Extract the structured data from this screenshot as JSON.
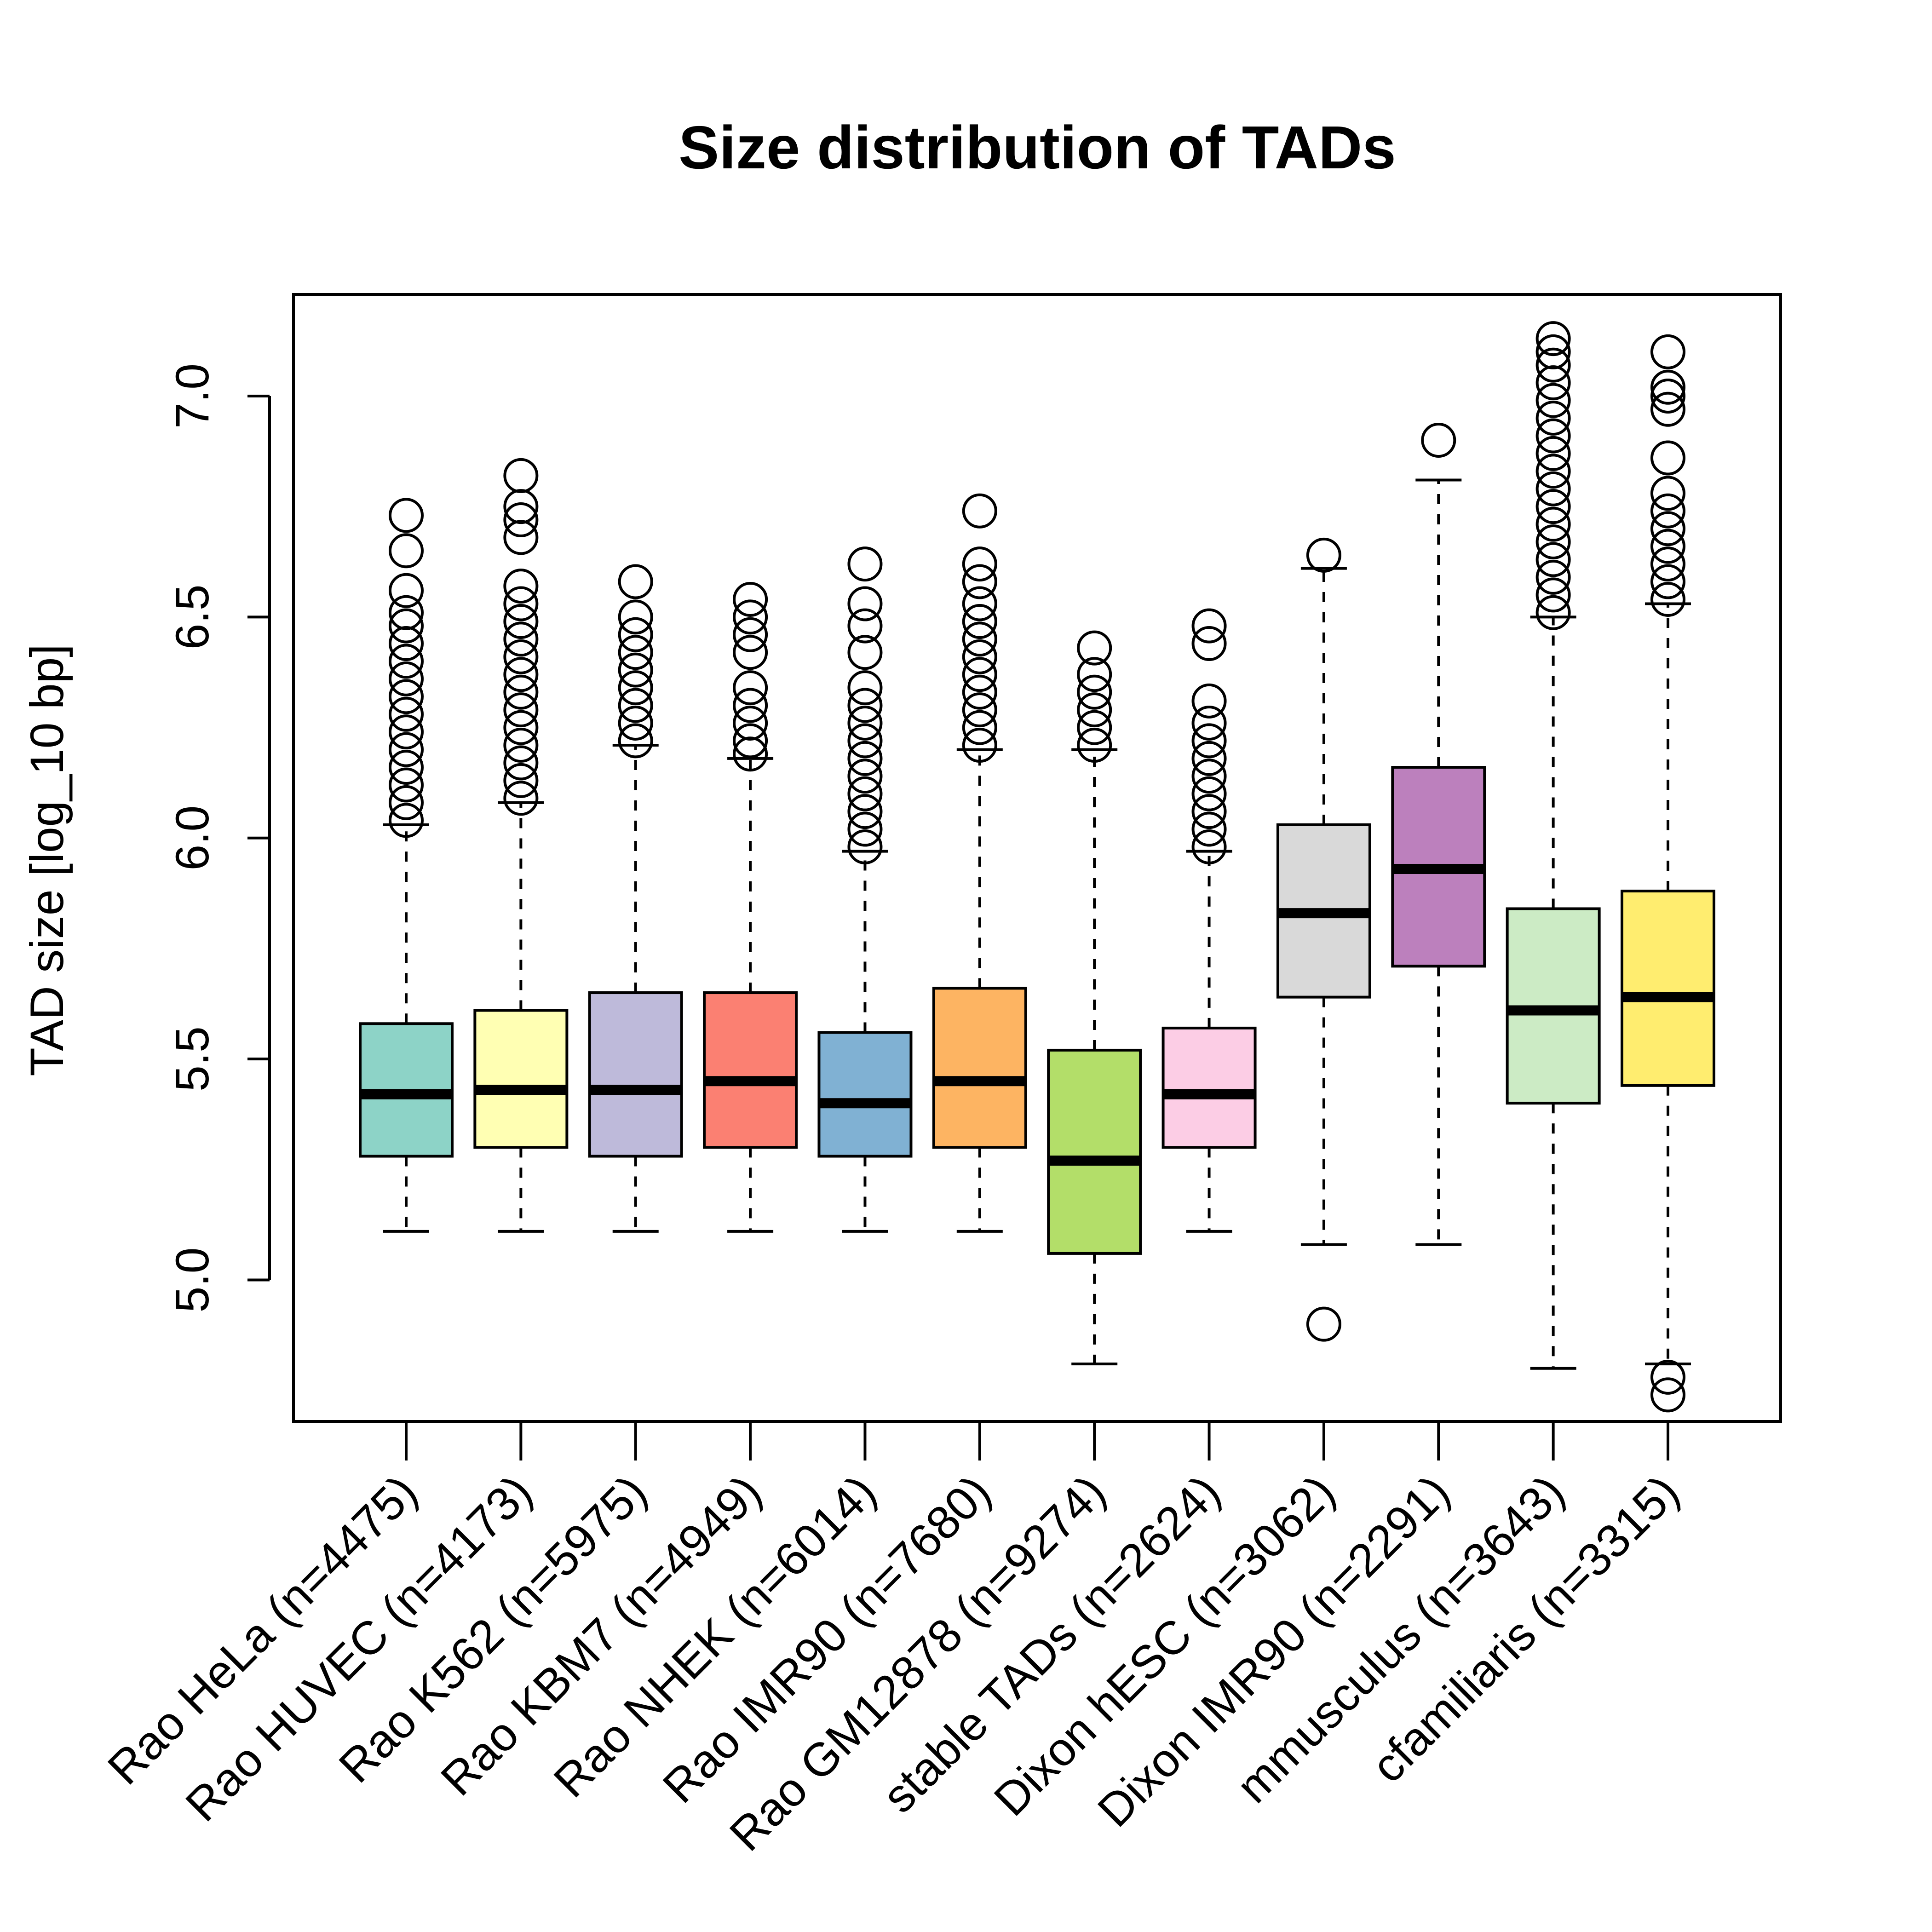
{
  "chart_data": {
    "type": "boxplot",
    "title": "Size distribution of TADs",
    "xlabel": "",
    "ylabel": "TAD size [log_10 bp]",
    "ylim": [
      4.68,
      7.23
    ],
    "yticks": [
      5.0,
      5.5,
      6.0,
      6.5,
      7.0
    ],
    "ytick_labels": [
      "5.0",
      "5.5",
      "6.0",
      "6.5",
      "7.0"
    ],
    "grid": false,
    "legend": "none",
    "categories": [
      "Rao HeLa (n=4475)",
      "Rao HUVEC (n=4173)",
      "Rao K562 (n=5975)",
      "Rao KBM7 (n=4949)",
      "Rao NHEK (n=6014)",
      "Rao IMR90 (n=7680)",
      "Rao GM12878 (n=9274)",
      "stable TADs (n=2624)",
      "Dixon hESC (n=3062)",
      "Dixon IMR90 (n=2291)",
      "mmusculus (n=3643)",
      "cfamiliaris (n=3315)"
    ],
    "boxes": [
      {
        "whisker_low": 5.11,
        "q1": 5.28,
        "median": 5.42,
        "q3": 5.58,
        "whisker_high": 6.03,
        "color": "#8DD3C7",
        "outliers": [
          6.04,
          6.08,
          6.12,
          6.16,
          6.2,
          6.24,
          6.28,
          6.32,
          6.36,
          6.4,
          6.44,
          6.48,
          6.51,
          6.56,
          6.65,
          6.73
        ]
      },
      {
        "whisker_low": 5.11,
        "q1": 5.3,
        "median": 5.43,
        "q3": 5.61,
        "whisker_high": 6.08,
        "color": "#FFFFB3",
        "outliers": [
          6.09,
          6.13,
          6.17,
          6.21,
          6.25,
          6.29,
          6.33,
          6.37,
          6.41,
          6.45,
          6.49,
          6.53,
          6.57,
          6.68,
          6.72,
          6.75,
          6.82
        ]
      },
      {
        "whisker_low": 5.11,
        "q1": 5.28,
        "median": 5.43,
        "q3": 5.65,
        "whisker_high": 6.21,
        "color": "#BEBADA",
        "outliers": [
          6.22,
          6.26,
          6.3,
          6.34,
          6.38,
          6.42,
          6.46,
          6.5,
          6.58
        ]
      },
      {
        "whisker_low": 5.11,
        "q1": 5.3,
        "median": 5.45,
        "q3": 5.65,
        "whisker_high": 6.18,
        "color": "#FB8072",
        "outliers": [
          6.19,
          6.22,
          6.26,
          6.3,
          6.34,
          6.42,
          6.46,
          6.5,
          6.54
        ]
      },
      {
        "whisker_low": 5.11,
        "q1": 5.28,
        "median": 5.4,
        "q3": 5.56,
        "whisker_high": 5.97,
        "color": "#80B1D3",
        "outliers": [
          5.98,
          6.02,
          6.06,
          6.1,
          6.14,
          6.18,
          6.22,
          6.26,
          6.3,
          6.34,
          6.42,
          6.48,
          6.53,
          6.62
        ]
      },
      {
        "whisker_low": 5.11,
        "q1": 5.3,
        "median": 5.45,
        "q3": 5.66,
        "whisker_high": 6.2,
        "color": "#FDB462",
        "outliers": [
          6.21,
          6.25,
          6.29,
          6.33,
          6.37,
          6.41,
          6.45,
          6.49,
          6.53,
          6.58,
          6.62,
          6.74
        ]
      },
      {
        "whisker_low": 4.81,
        "q1": 5.06,
        "median": 5.27,
        "q3": 5.52,
        "whisker_high": 6.2,
        "color": "#B3DE69",
        "outliers": [
          6.21,
          6.25,
          6.29,
          6.33,
          6.37,
          6.43
        ]
      },
      {
        "whisker_low": 5.11,
        "q1": 5.3,
        "median": 5.42,
        "q3": 5.57,
        "whisker_high": 5.97,
        "color": "#FCCDE5",
        "outliers": [
          5.98,
          6.02,
          6.06,
          6.1,
          6.14,
          6.18,
          6.22,
          6.26,
          6.31,
          6.44,
          6.48
        ]
      },
      {
        "whisker_low": 5.08,
        "q1": 5.64,
        "median": 5.83,
        "q3": 6.03,
        "whisker_high": 6.61,
        "color": "#D9D9D9",
        "outliers": [
          4.9,
          6.64
        ]
      },
      {
        "whisker_low": 5.08,
        "q1": 5.71,
        "median": 5.93,
        "q3": 6.16,
        "whisker_high": 6.81,
        "color": "#BC80BD",
        "outliers": [
          6.9
        ]
      },
      {
        "whisker_low": 4.8,
        "q1": 5.4,
        "median": 5.61,
        "q3": 5.84,
        "whisker_high": 6.5,
        "color": "#CCEBC5",
        "outliers": [
          6.51,
          6.55,
          6.59,
          6.63,
          6.67,
          6.71,
          6.75,
          6.79,
          6.83,
          6.87,
          6.91,
          6.95,
          6.99,
          7.03,
          7.07,
          7.1,
          7.13
        ]
      },
      {
        "whisker_low": 4.81,
        "q1": 5.44,
        "median": 5.64,
        "q3": 5.88,
        "whisker_high": 6.53,
        "color": "#FFED6F",
        "outliers": [
          4.74,
          4.78,
          6.54,
          6.58,
          6.62,
          6.66,
          6.7,
          6.74,
          6.78,
          6.86,
          6.97,
          7.0,
          7.02,
          7.1
        ]
      }
    ]
  }
}
